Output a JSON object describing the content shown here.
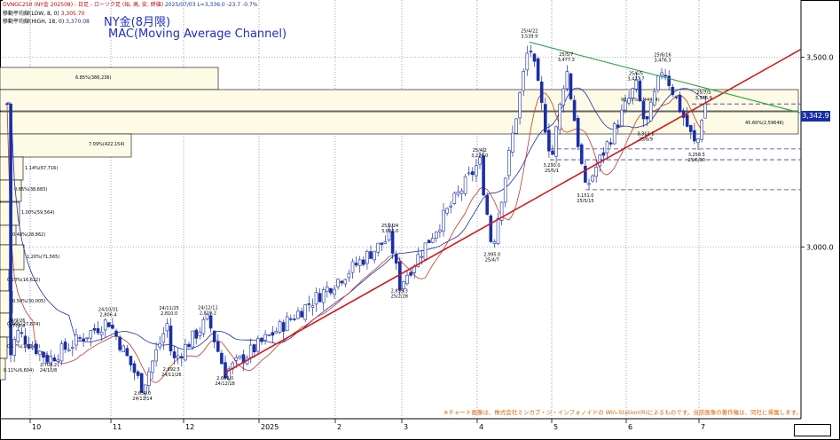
{
  "header": {
    "symbol_line": "OVNGC250 (NY金 202508) - 日足 - ローソク足 (始, 高, 安, 終値)",
    "date_values": "2025/07/03 L=3,336.0 -23.7 -0.7%",
    "ma_low_label": "移動平均線(LOW, 8, 0)",
    "ma_low_value": "3,305.70",
    "ma_high_label": "移動平均線(HIGH, 18, 0)",
    "ma_high_value": "3,370.08"
  },
  "titles": {
    "line1": "NY金(8月限)",
    "line2": "MAC(Moving Average Channel)"
  },
  "credit": "※チャート画像は、株式会社ミンカブ・ジ・インフォノイドの Win-Station(R)によるものです。当該画像の著作権は、同社に帰属します。",
  "price_tag": "3,342.9",
  "date_box": "",
  "colors": {
    "up": "#ffffff",
    "down": "#1a2ea6",
    "ma_low": "#c0392b",
    "ma_high": "#1a2ea6",
    "support": "#d01a1a",
    "resistance": "#2ea24a",
    "volume_box_fill": "#fdfbe6",
    "grid": "#6b5ca8",
    "dashed": "#3b3f9a"
  },
  "chart_data": {
    "type": "candlestick",
    "y_axis_ticks": [
      "3,500.0",
      "3,000.0"
    ],
    "ylim": [
      2560,
      3620
    ],
    "x_months": [
      "10",
      "11",
      "12",
      "2025",
      "2",
      "3",
      "4",
      "5",
      "6",
      "7"
    ],
    "price_annotations": [
      {
        "date": "24/9/26",
        "value": "2,776.8"
      },
      {
        "date": "24/10/8",
        "value": "2,704.2"
      },
      {
        "date": "24/10/31",
        "value": "2,806.4"
      },
      {
        "date": "24/11/14",
        "value": "2,630.0"
      },
      {
        "date": "24/11/25",
        "value": "2,810.0"
      },
      {
        "date": "24/11/26",
        "value": "2,692.5"
      },
      {
        "date": "24/12/11",
        "value": "2,810.2"
      },
      {
        "date": "24/12/18",
        "value": "2,669.0"
      },
      {
        "date": "25/2/24",
        "value": "3,027.0"
      },
      {
        "date": "25/2/28",
        "value": "2,899.3"
      },
      {
        "date": "25/4/2",
        "value": "3,226.0"
      },
      {
        "date": "25/4/7",
        "value": "2,995.0"
      },
      {
        "date": "25/4/22",
        "value": "3,539.9"
      },
      {
        "date": "25/5/1",
        "value": "3,230.0"
      },
      {
        "date": "25/5/7",
        "value": "3,477.3"
      },
      {
        "date": "25/5/15",
        "value": "3,151.0"
      },
      {
        "date": "25/6/5",
        "value": "3,427.7"
      },
      {
        "date": "25/6/9",
        "value": "3,313.1"
      },
      {
        "date": "25/6/16",
        "value": "3,476.3"
      },
      {
        "date": "25/6/30",
        "value": "3,258.5"
      },
      {
        "date": "25/7/3",
        "value": "3,376.9"
      }
    ],
    "volume_profile": [
      {
        "label": "6.85%(386,236)"
      },
      {
        "label": "98.05%(5,44444)"
      },
      {
        "label": "45.60%(2,59646)"
      },
      {
        "label": "7.09%(422,154)"
      },
      {
        "label": "1.14%(67,716)"
      },
      {
        "label": "0.65%(38,683)"
      },
      {
        "label": "1.00%(59,564)"
      },
      {
        "label": "0.48%(28,862)"
      },
      {
        "label": "1.20%(71,565)"
      },
      {
        "label": "0.28%(16,622)"
      },
      {
        "label": "0.50%(30,005)"
      },
      {
        "label": "0.46%(27,674)"
      },
      {
        "label": "0.27%(16,148)"
      },
      {
        "label": "0.11%(6,604)"
      }
    ],
    "horizontal_levels": [
      3376.9,
      3258.5,
      3230.0,
      3151.0
    ],
    "support_line": {
      "from": {
        "date": "24/12/18",
        "value": 2669.0
      },
      "to": {
        "date": "25/7/3",
        "value": 3376.9
      }
    },
    "resistance_line": {
      "from": {
        "date": "25/4/22",
        "value": 3539.9
      },
      "to": {
        "date": "25/7/3",
        "value": 3420.0
      }
    }
  }
}
